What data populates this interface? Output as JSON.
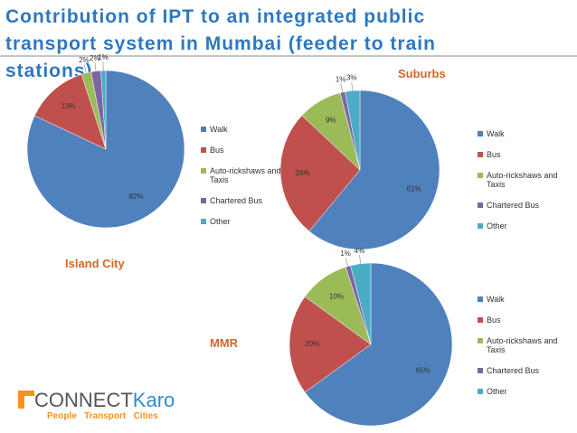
{
  "title": [
    "Contribution of IPT to an integrated public",
    "transport system in Mumbai (feeder to train",
    "stations)"
  ],
  "chart_data": [
    {
      "type": "pie",
      "title": "Island City",
      "categories": [
        "Walk",
        "Bus",
        "Auto-rickshaws and Taxis",
        "Chartered Bus",
        "Other"
      ],
      "values": [
        82,
        13,
        2,
        2,
        1
      ],
      "value_labels": [
        "82%",
        "13%",
        "2%",
        "2%",
        "1%"
      ],
      "colors": [
        "#4f81bd",
        "#c0504d",
        "#9bbb59",
        "#8064a2",
        "#4bacc6"
      ]
    },
    {
      "type": "pie",
      "title": "Suburbs",
      "categories": [
        "Walk",
        "Bus",
        "Auto-rickshaws and Taxis",
        "Chartered Bus",
        "Other"
      ],
      "values": [
        61,
        26,
        9,
        1,
        3
      ],
      "value_labels": [
        "61%",
        "26%",
        "9%",
        "1%",
        "3%"
      ],
      "colors": [
        "#4f81bd",
        "#c0504d",
        "#9bbb59",
        "#8064a2",
        "#4bacc6"
      ]
    },
    {
      "type": "pie",
      "title": "MMR",
      "categories": [
        "Walk",
        "Bus",
        "Auto-rickshaws and Taxis",
        "Chartered Bus",
        "Other"
      ],
      "values": [
        65,
        20,
        10,
        1,
        4
      ],
      "value_labels": [
        "65%",
        "20%",
        "10%",
        "1%",
        "4%"
      ],
      "colors": [
        "#4f81bd",
        "#c0504d",
        "#9bbb59",
        "#8064a2",
        "#4bacc6"
      ]
    }
  ],
  "logo": {
    "name": [
      "CONNECT",
      "Karo"
    ],
    "tagline": "People   Transport   Cities"
  }
}
